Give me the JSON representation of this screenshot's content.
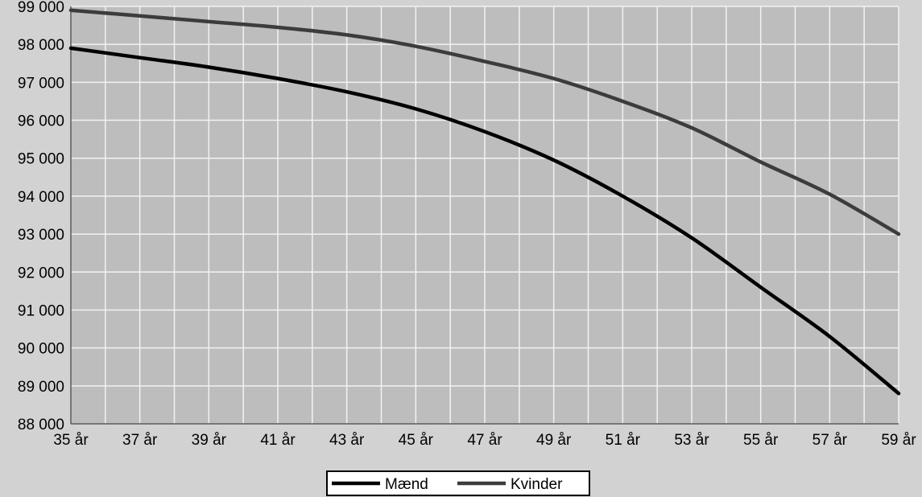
{
  "colors": {
    "page_background": "#d2d2d2",
    "plot_background": "#bdbdbd",
    "grid": "#f2f2f2",
    "text": "#000000",
    "legend_background": "#ffffff"
  },
  "chart_data": {
    "type": "line",
    "title": "",
    "xlabel": "",
    "ylabel": "",
    "x": [
      35,
      37,
      39,
      41,
      43,
      45,
      47,
      49,
      51,
      53,
      55,
      57,
      59
    ],
    "x_tick_labels": [
      "35 år",
      "37 år",
      "39 år",
      "41 år",
      "43 år",
      "45 år",
      "47 år",
      "49 år",
      "51 år",
      "53 år",
      "55 år",
      "57 år",
      "59 år"
    ],
    "y_tick_labels": [
      "88 000",
      "89 000",
      "90 000",
      "91 000",
      "92 000",
      "93 000",
      "94 000",
      "95 000",
      "96 000",
      "97 000",
      "98 000",
      "99 000"
    ],
    "xlim": [
      35,
      59
    ],
    "ylim": [
      88000,
      99000
    ],
    "grid": true,
    "legend_position": "bottom",
    "series": [
      {
        "name": "Mænd",
        "color": "#000000",
        "values": [
          97900,
          97650,
          97400,
          97100,
          96750,
          96300,
          95700,
          94950,
          94000,
          92900,
          91600,
          90300,
          88800
        ]
      },
      {
        "name": "Kvinder",
        "color": "#3c3c3c",
        "values": [
          98900,
          98750,
          98600,
          98450,
          98250,
          97950,
          97550,
          97100,
          96500,
          95800,
          94900,
          94050,
          93000
        ]
      }
    ]
  }
}
